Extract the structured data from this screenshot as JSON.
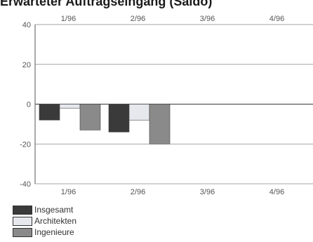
{
  "chart_data": {
    "type": "bar",
    "title": "Erwarteter Auftragseingang (Saldo)",
    "xlabel": "",
    "ylabel": "",
    "categories": [
      "1/96",
      "2/96",
      "3/96",
      "4/96"
    ],
    "ylim": [
      -40,
      40
    ],
    "yticks": [
      40,
      20,
      0,
      -20,
      -40
    ],
    "grid": true,
    "legend_position": "bottom-left",
    "series": [
      {
        "name": "Insgesamt",
        "color": "#3a3a3a",
        "values": [
          -8,
          -14,
          null,
          null
        ]
      },
      {
        "name": "Architekten",
        "color": "#e6e8ee",
        "values": [
          -2,
          -8,
          null,
          null
        ]
      },
      {
        "name": "Ingenieure",
        "color": "#8a8a8a",
        "values": [
          -13,
          -20,
          null,
          null
        ]
      }
    ]
  }
}
